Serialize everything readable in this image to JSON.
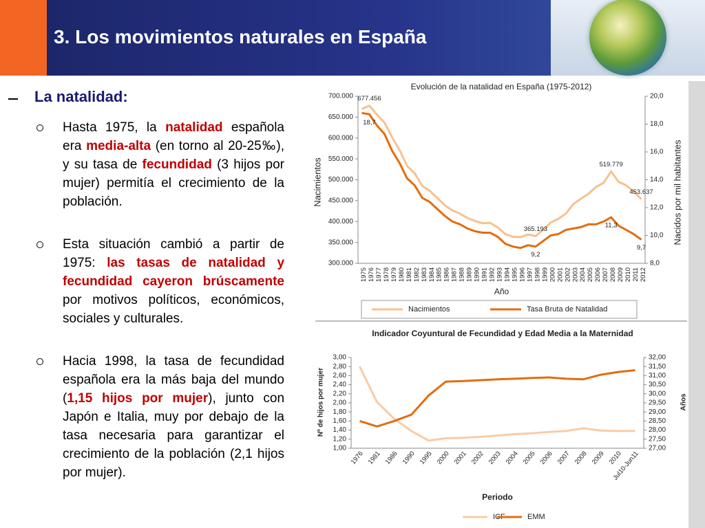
{
  "header": {
    "title": "3. Los movimientos naturales en España"
  },
  "section": {
    "heading": "La natalidad:",
    "items": [
      {
        "runs": [
          {
            "text": "Hasta 1975, la "
          },
          {
            "text": "natalidad",
            "color": "#c00000",
            "bold": true
          },
          {
            "text": " española era "
          },
          {
            "text": "media-alta",
            "color": "#c00000",
            "bold": true
          },
          {
            "text": " (en torno al 20-25‰), y su tasa de "
          },
          {
            "text": "fecundidad",
            "color": "#c00000",
            "bold": true
          },
          {
            "text": " (3 hijos por mujer) permitía el crecimiento de la población."
          }
        ]
      },
      {
        "runs": [
          {
            "text": "Esta situación cambió a partir de 1975: "
          },
          {
            "text": "las tasas de natalidad y fecundidad cayeron brúscamente",
            "color": "#c00000",
            "bold": true
          },
          {
            "text": " por motivos políticos, económicos, sociales y culturales."
          }
        ]
      },
      {
        "runs": [
          {
            "text": "Hacia 1998, la tasa de fecundidad española era la más baja del mundo ("
          },
          {
            "text": "1,15 hijos por mujer",
            "color": "#c00000",
            "bold": true
          },
          {
            "text": "), junto con Japón e Italia, muy por debajo de la tasa necesaria para garantizar el crecimiento de la población (2,1 hijos por mujer)."
          }
        ]
      }
    ]
  },
  "chart_data": [
    {
      "type": "line",
      "title": "Evolución de la natalidad en España (1975-2012)",
      "xlabel": "Año",
      "ylabel": "Nacimientos",
      "y2label": "Nacidos por mil habitantes",
      "categories": [
        "1975",
        "1976",
        "1977",
        "1978",
        "1979",
        "1980",
        "1981",
        "1982",
        "1983",
        "1984",
        "1985",
        "1986",
        "1987",
        "1988",
        "1989",
        "1990",
        "1991",
        "1992",
        "1993",
        "1994",
        "1995",
        "1996",
        "1997",
        "1998",
        "1999",
        "2000",
        "2001",
        "2002",
        "2003",
        "2004",
        "2005",
        "2006",
        "2007",
        "2008",
        "2009",
        "2010",
        "2011",
        "2012"
      ],
      "ylim": [
        300000,
        700000
      ],
      "yticks": [
        {
          "value": 300000,
          "label": "300.000"
        },
        {
          "value": 350000,
          "label": "350.000"
        },
        {
          "value": 400000,
          "label": "400.000"
        },
        {
          "value": 450000,
          "label": "450.000"
        },
        {
          "value": 500000,
          "label": "500.000"
        },
        {
          "value": 550000,
          "label": "550.000"
        },
        {
          "value": 600000,
          "label": "600.000"
        },
        {
          "value": 650000,
          "label": "650.000"
        },
        {
          "value": 700000,
          "label": "700.000"
        }
      ],
      "y2lim": [
        8,
        20
      ],
      "y2ticks": [
        {
          "value": 8,
          "label": "8,0"
        },
        {
          "value": 10,
          "label": "10,0"
        },
        {
          "value": 12,
          "label": "12,0"
        },
        {
          "value": 14,
          "label": "14,0"
        },
        {
          "value": 16,
          "label": "16,0"
        },
        {
          "value": 18,
          "label": "18,0"
        },
        {
          "value": 20,
          "label": "20,0"
        }
      ],
      "series": [
        {
          "name": "Nacimientos",
          "color": "#f7c18f",
          "values": [
            669378,
            677456,
            656357,
            636892,
            601992,
            571018,
            533008,
            515706,
            485352,
            473281,
            456298,
            438750,
            426782,
            418919,
            408434,
            401425,
            395989,
            396747,
            385786,
            370148,
            363469,
            362626,
            369035,
            365193,
            380130,
            397632,
            406380,
            418846,
            441881,
            454591,
            466371,
            482957,
            492527,
            519779,
            494997,
            486575,
            471999,
            453637
          ],
          "value_labels": [
            null,
            "677.456",
            null,
            null,
            null,
            null,
            null,
            null,
            null,
            null,
            null,
            null,
            null,
            null,
            null,
            null,
            null,
            null,
            null,
            null,
            null,
            null,
            null,
            "365.193",
            null,
            null,
            null,
            null,
            null,
            null,
            null,
            null,
            null,
            "519.779",
            null,
            null,
            null,
            "453.637"
          ]
        },
        {
          "name": "Tasa Bruta de Natalidad",
          "color": "#e46c0a",
          "axis": "y2",
          "values": [
            18.8,
            18.7,
            17.9,
            17.3,
            16.1,
            15.2,
            14.1,
            13.6,
            12.7,
            12.4,
            11.9,
            11.4,
            11.0,
            10.8,
            10.5,
            10.3,
            10.2,
            10.2,
            9.9,
            9.4,
            9.2,
            9.1,
            9.3,
            9.2,
            9.6,
            10.0,
            10.1,
            10.4,
            10.5,
            10.6,
            10.8,
            10.8,
            11.0,
            11.3,
            10.7,
            10.4,
            10.1,
            9.7
          ],
          "value_labels": [
            null,
            "18,7",
            null,
            null,
            null,
            null,
            null,
            null,
            null,
            null,
            null,
            null,
            null,
            null,
            null,
            null,
            null,
            null,
            null,
            null,
            null,
            null,
            null,
            "9,2",
            null,
            null,
            null,
            null,
            null,
            null,
            null,
            null,
            null,
            "11,3",
            null,
            null,
            null,
            "9,7"
          ]
        }
      ]
    },
    {
      "type": "line",
      "title": "Indicador Coyuntural de Fecundidad y Edad Media a la Maternidad",
      "xlabel": "Periodo",
      "ylabel": "Nº de hijos por mujer",
      "y2label": "Años",
      "categories": [
        "1976",
        "1981",
        "1986",
        "1990",
        "1995",
        "2000",
        "2001",
        "2002",
        "2003",
        "2004",
        "2005",
        "2006",
        "2007",
        "2008",
        "2009",
        "2010",
        "Jul10-Jun11"
      ],
      "ylim": [
        1,
        3
      ],
      "yticks": [
        {
          "value": 1,
          "label": "1,00"
        },
        {
          "value": 1.2,
          "label": "1,20"
        },
        {
          "value": 1.4,
          "label": "1,40"
        },
        {
          "value": 1.6,
          "label": "1,60"
        },
        {
          "value": 1.8,
          "label": "1,80"
        },
        {
          "value": 2,
          "label": "2,00"
        },
        {
          "value": 2.2,
          "label": "2,20"
        },
        {
          "value": 2.4,
          "label": "2,40"
        },
        {
          "value": 2.6,
          "label": "2,60"
        },
        {
          "value": 2.8,
          "label": "2,80"
        },
        {
          "value": 3,
          "label": "3,00"
        }
      ],
      "y2lim": [
        27,
        32
      ],
      "y2ticks": [
        {
          "value": 27,
          "label": "27,00"
        },
        {
          "value": 27.5,
          "label": "27,50"
        },
        {
          "value": 28,
          "label": "28,00"
        },
        {
          "value": 28.5,
          "label": "28,50"
        },
        {
          "value": 29,
          "label": "29,00"
        },
        {
          "value": 29.5,
          "label": "29,50"
        },
        {
          "value": 30,
          "label": "30,00"
        },
        {
          "value": 30.5,
          "label": "30,50"
        },
        {
          "value": 31,
          "label": "31,00"
        },
        {
          "value": 31.5,
          "label": "31,50"
        },
        {
          "value": 32,
          "label": "32,00"
        }
      ],
      "series": [
        {
          "name": "ICF",
          "color": "#f9cba5",
          "values": [
            2.8,
            2.02,
            1.65,
            1.38,
            1.17,
            1.22,
            1.23,
            1.25,
            1.28,
            1.31,
            1.33,
            1.36,
            1.38,
            1.44,
            1.39,
            1.38,
            1.38
          ]
        },
        {
          "name": "EMM",
          "color": "#e46c0a",
          "axis": "y2",
          "values": [
            28.5,
            28.2,
            28.5,
            28.85,
            29.9,
            30.67,
            30.7,
            30.75,
            30.8,
            30.83,
            30.87,
            30.9,
            30.83,
            30.8,
            31.05,
            31.2,
            31.3
          ]
        }
      ]
    }
  ]
}
